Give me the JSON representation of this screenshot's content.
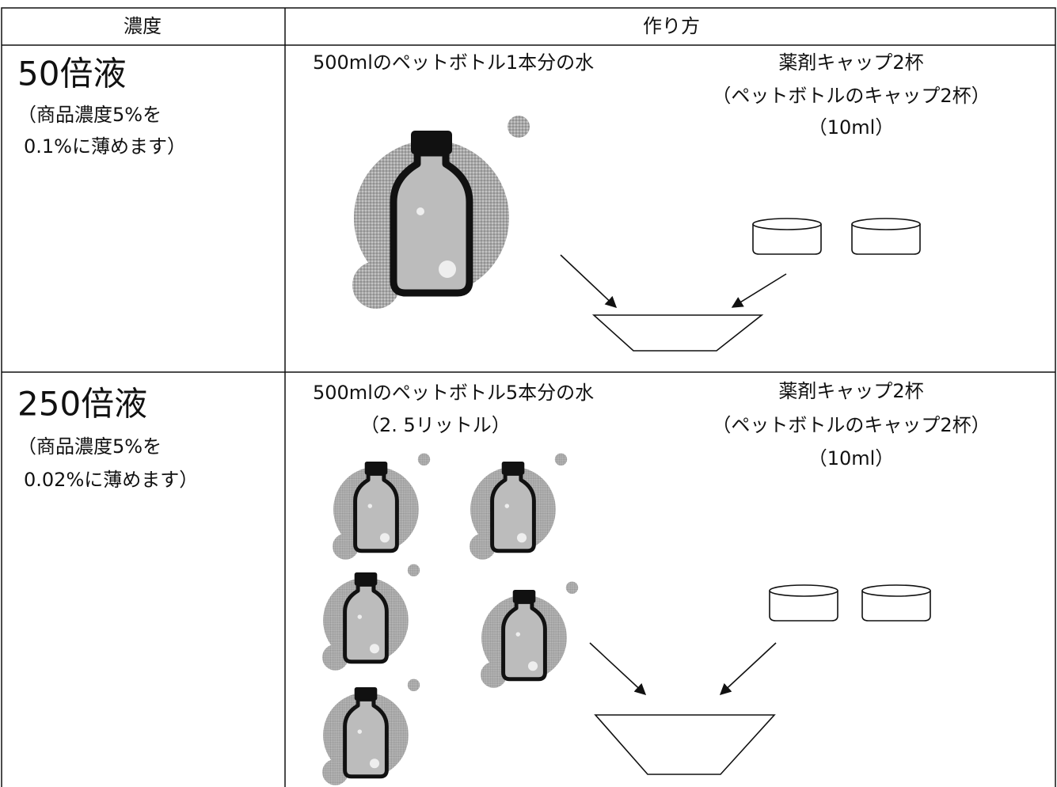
{
  "table": {
    "header": [
      "濃度",
      "作り方"
    ],
    "rows": [
      {
        "concentration": "50倍液",
        "note": [
          "（商品濃度5%を",
          "0.1%に薄めます）"
        ],
        "water": [
          "500mlのペットボトル1本分の水"
        ],
        "agent": [
          "薬剤キャップ2杯",
          "（ペットボトルのキャップ2杯）",
          "（10ml）"
        ]
      },
      {
        "concentration": "250倍液",
        "note": [
          "（商品濃度5%を",
          "0.02%に薄めます）"
        ],
        "water": [
          "500mlのペットボトル5本分の水",
          "（2. 5リットル）"
        ],
        "agent": [
          "薬剤キャップ2杯",
          "（ペットボトルのキャップ2杯）",
          "（10ml）"
        ]
      }
    ]
  }
}
